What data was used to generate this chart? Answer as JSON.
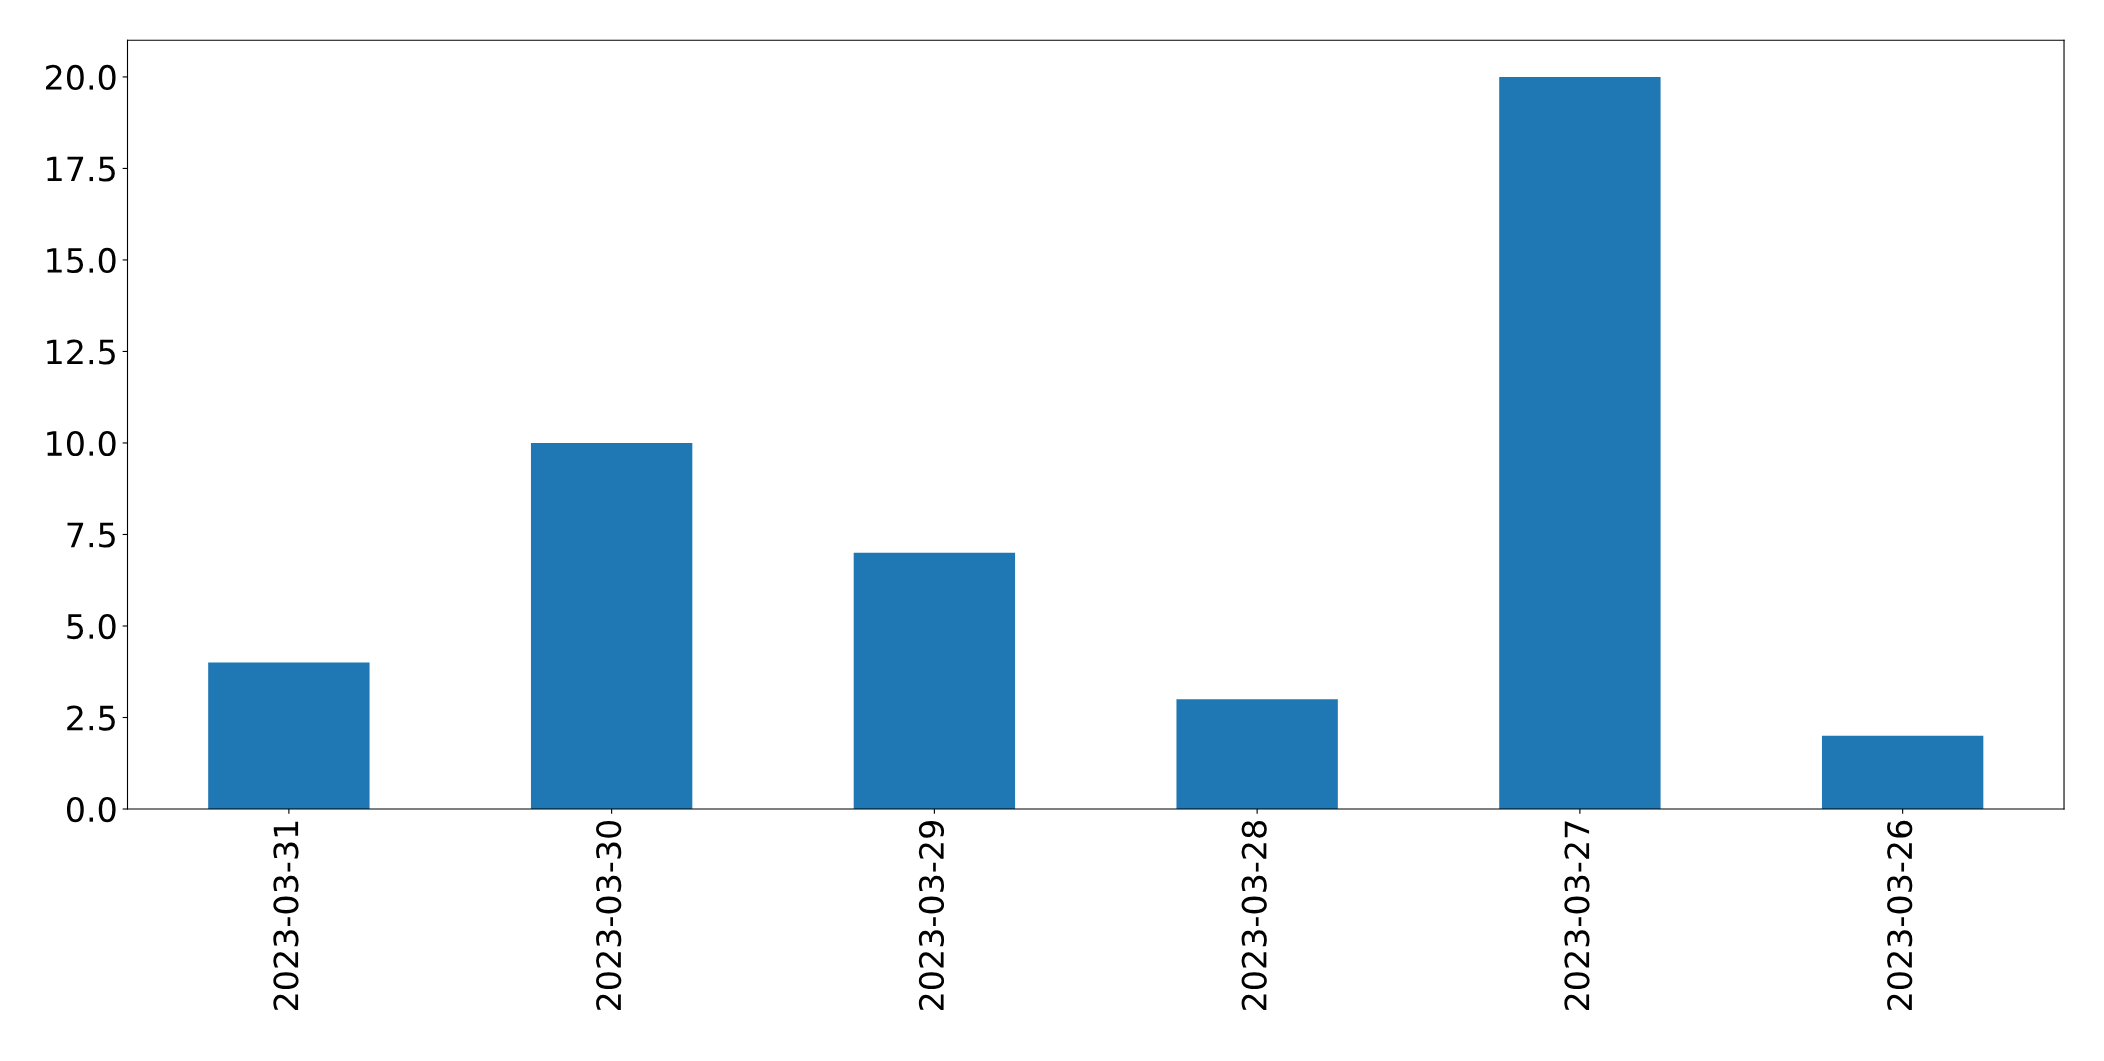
{
  "chart_data": {
    "type": "bar",
    "categories": [
      "2023-03-31",
      "2023-03-30",
      "2023-03-29",
      "2023-03-28",
      "2023-03-27",
      "2023-03-26"
    ],
    "values": [
      4,
      10,
      7,
      3,
      20,
      2
    ],
    "color": "#1f77b4",
    "ylim": [
      0,
      21
    ],
    "yticks": [
      {
        "value": 0,
        "label": "0.0"
      },
      {
        "value": 2.5,
        "label": "2.5"
      },
      {
        "value": 5,
        "label": "5.0"
      },
      {
        "value": 7.5,
        "label": "7.5"
      },
      {
        "value": 10,
        "label": "10.0"
      },
      {
        "value": 12.5,
        "label": "12.5"
      },
      {
        "value": 15,
        "label": "15.0"
      },
      {
        "value": 17.5,
        "label": "17.5"
      },
      {
        "value": 20,
        "label": "20.0"
      }
    ],
    "grid": false,
    "legend": false
  }
}
